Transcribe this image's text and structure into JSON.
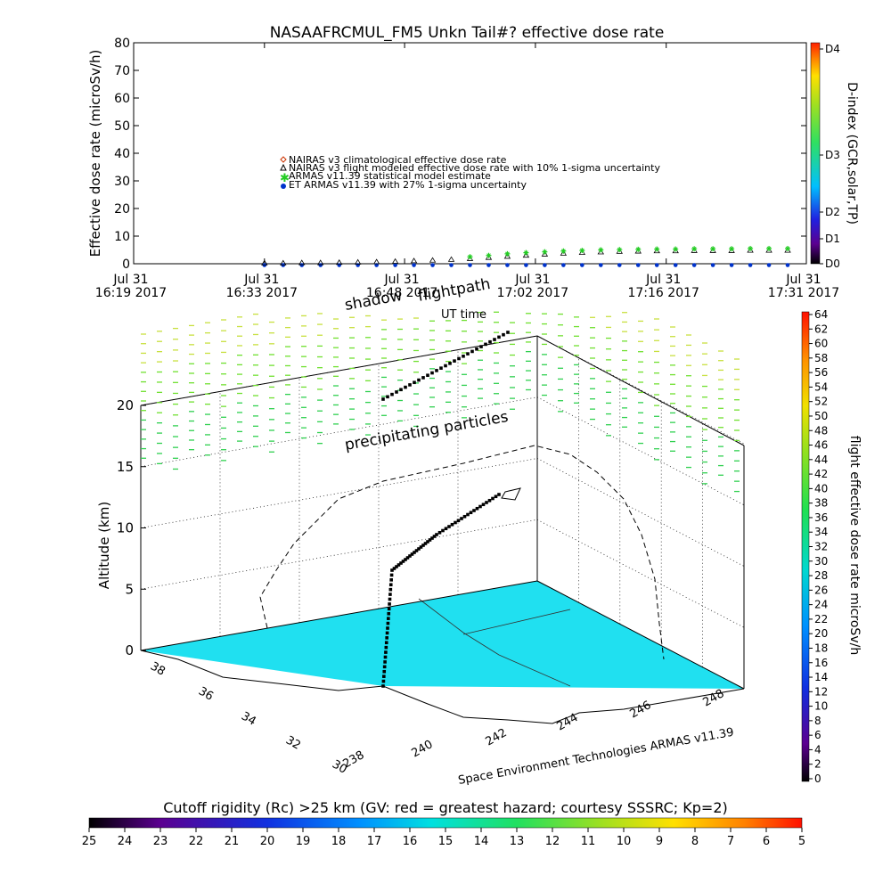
{
  "header": {
    "title": "NASAAFRCMUL_FM5 Unkn Tail#? effective dose rate"
  },
  "chart_data": [
    {
      "type": "scatter",
      "title": "NASAAFRCMUL_FM5 Unkn Tail#? effective dose rate",
      "ylabel": "Effective dose rate (microSv/h)",
      "xlabel": "",
      "ylim": [
        0,
        80
      ],
      "y_ticks": [
        "0",
        "10",
        "20",
        "30",
        "40",
        "50",
        "60",
        "70",
        "80"
      ],
      "x_ticks": [
        {
          "date": "Jul 31",
          "time": "16:19",
          "year": "2017"
        },
        {
          "date": "Jul 31",
          "time": "16:33",
          "year": "2017"
        },
        {
          "date": "Jul 31",
          "time": "16:48",
          "year": "2017"
        },
        {
          "date": "Jul 31",
          "time": "17:02",
          "year": "2017"
        },
        {
          "date": "Jul 31",
          "time": "17:16",
          "year": "2017"
        },
        {
          "date": "Jul 31",
          "time": "17:31",
          "year": "2017"
        }
      ],
      "x_minutes": [
        0,
        14,
        29,
        43,
        57,
        72
      ],
      "legend": [
        {
          "label": "NAIRAS v3 climatological effective dose rate",
          "color": "#cc3300",
          "marker": "diamond"
        },
        {
          "label": "NAIRAS v3 flight modeled effective dose rate with 10% 1-sigma uncertainty",
          "color": "#000000",
          "marker": "triangle"
        },
        {
          "label": "ARMAS v11.39 statistical model estimate",
          "color": "#22cc22",
          "marker": "star"
        },
        {
          "label": "ET ARMAS v11.39 with 27% 1-sigma uncertainty",
          "color": "#0033cc",
          "marker": "dot"
        }
      ],
      "series": [
        {
          "name": "NAIRAS v3 flight modeled effective dose rate with 10% 1-sigma uncertainty",
          "x": [
            14,
            16,
            18,
            20,
            22,
            24,
            26,
            28,
            30,
            32,
            34,
            36,
            38,
            40,
            42,
            44,
            46,
            48,
            50,
            52,
            54,
            56,
            58,
            60,
            62,
            64,
            66,
            68,
            70
          ],
          "y": [
            0.2,
            0.2,
            0.3,
            0.3,
            0.4,
            0.5,
            0.6,
            0.8,
            1.0,
            1.2,
            1.5,
            1.8,
            2.2,
            2.6,
            3.0,
            3.4,
            3.7,
            4.0,
            4.2,
            4.4,
            4.5,
            4.6,
            4.6,
            4.7,
            4.7,
            4.7,
            4.8,
            4.8,
            4.8
          ]
        },
        {
          "name": "ARMAS v11.39 statistical model estimate",
          "x": [
            36,
            38,
            40,
            42,
            44,
            46,
            48,
            50,
            52,
            54,
            56,
            58,
            60,
            62,
            64,
            66,
            68,
            70
          ],
          "y": [
            2.5,
            3.0,
            3.6,
            4.0,
            4.3,
            4.6,
            4.8,
            5.0,
            5.1,
            5.2,
            5.3,
            5.3,
            5.4,
            5.4,
            5.4,
            5.5,
            5.5,
            5.5
          ]
        },
        {
          "name": "ET ARMAS v11.39 with 27% 1-sigma uncertainty",
          "x": [
            14,
            16,
            18,
            20,
            22,
            24,
            26,
            28,
            30,
            32,
            34,
            36,
            38,
            40,
            42,
            44,
            46,
            48,
            50,
            52,
            54,
            56,
            58,
            60,
            62,
            64,
            66,
            68,
            70
          ],
          "y": [
            -0.5,
            -0.5,
            -0.5,
            -0.5,
            -0.5,
            -0.5,
            -0.5,
            -0.5,
            -0.5,
            -0.5,
            -0.5,
            -0.5,
            -0.5,
            -0.5,
            -0.5,
            -0.5,
            -0.5,
            -0.5,
            -0.5,
            -0.5,
            -0.5,
            -0.5,
            -0.5,
            -0.5,
            -0.5,
            -0.5,
            -0.5,
            -0.5,
            -0.5
          ]
        }
      ],
      "colorbar": {
        "label": "D-index (GCR,solar,TP)",
        "ticks": [
          "D0",
          "D1",
          "D2",
          "D3",
          "D4"
        ]
      }
    },
    {
      "type": "scatter",
      "ylabel": "Altitude (km)",
      "z_ticks": [
        "0",
        "5",
        "10",
        "15",
        "20"
      ],
      "lat_ticks": [
        "30",
        "32",
        "34",
        "36",
        "38"
      ],
      "lon_ticks": [
        "238",
        "240",
        "242",
        "244",
        "246",
        "248"
      ],
      "annotations": [
        "flightpath",
        "shadow",
        "precipitating particles",
        "UT time"
      ],
      "credit": "Space Environment Technologies ARMAS v11.39",
      "colorbar": {
        "label": "flight effective dose rate microSv/h",
        "ticks": [
          "0",
          "2",
          "4",
          "6",
          "8",
          "10",
          "12",
          "14",
          "16",
          "18",
          "20",
          "22",
          "24",
          "26",
          "28",
          "30",
          "32",
          "34",
          "36",
          "38",
          "40",
          "42",
          "44",
          "46",
          "48",
          "50",
          "52",
          "54",
          "56",
          "58",
          "60",
          "62",
          "64"
        ]
      }
    },
    {
      "type": "heatmap",
      "title": "Cutoff rigidity (Rc) >25 km (GV: red = greatest hazard; courtesy SSSRC; Kp=2)",
      "ticks": [
        "25",
        "24",
        "23",
        "22",
        "21",
        "20",
        "19",
        "18",
        "17",
        "16",
        "15",
        "14",
        "13",
        "12",
        "11",
        "10",
        "9",
        "8",
        "7",
        "6",
        "5"
      ]
    }
  ]
}
